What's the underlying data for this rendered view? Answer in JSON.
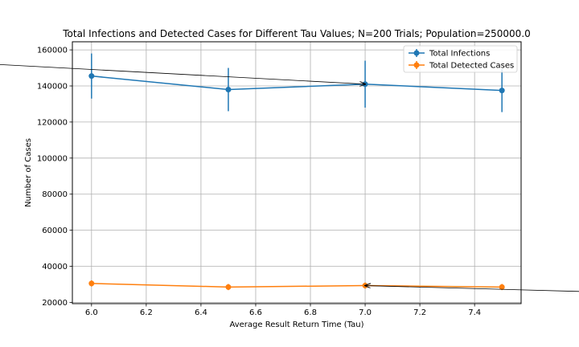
{
  "chart_data": {
    "type": "line",
    "title": "Total Infections and Detected Cases for Different Tau Values; N=200 Trials; Population=250000.0",
    "xlabel": "Average Result Return Time (Tau)",
    "ylabel": "Number of Cases",
    "xlim": [
      5.93,
      7.57
    ],
    "ylim": [
      19300,
      164500
    ],
    "xticks": [
      "6.0",
      "6.2",
      "6.4",
      "6.6",
      "6.8",
      "7.0",
      "7.2",
      "7.4"
    ],
    "yticks": [
      "20000",
      "40000",
      "60000",
      "80000",
      "100000",
      "120000",
      "140000",
      "160000"
    ],
    "grid": true,
    "legend_position": "upper right",
    "x": [
      6.0,
      6.5,
      7.0,
      7.5
    ],
    "series": [
      {
        "name": "Total Infections",
        "color": "#1f77b4",
        "values": [
          145500,
          138000,
          141000,
          137500
        ],
        "errors": [
          12500,
          12000,
          13000,
          12000
        ]
      },
      {
        "name": "Total Detected Cases",
        "color": "#ff7f0e",
        "values": [
          30500,
          28500,
          29300,
          28500
        ],
        "errors": [
          1700,
          1700,
          1700,
          1700
        ]
      }
    ],
    "annotations": [
      {
        "from": [
          5.65,
          152000
        ],
        "to": [
          7.0,
          141000
        ],
        "color": "#000000"
      },
      {
        "from": [
          8.35,
          23700
        ],
        "to": [
          7.0,
          29300
        ],
        "color": "#000000"
      }
    ]
  }
}
